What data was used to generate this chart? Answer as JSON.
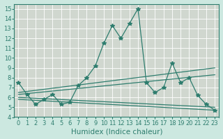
{
  "background_color": "#cce8e0",
  "grid_color": "#add8cc",
  "line_color": "#2e7d6e",
  "xlabel": "Humidex (Indice chaleur)",
  "xlim": [
    -0.5,
    23.5
  ],
  "ylim": [
    4,
    15.5
  ],
  "yticks": [
    4,
    5,
    6,
    7,
    8,
    9,
    10,
    11,
    12,
    13,
    14,
    15
  ],
  "xticks": [
    0,
    1,
    2,
    3,
    4,
    5,
    6,
    7,
    8,
    9,
    10,
    11,
    12,
    13,
    14,
    15,
    16,
    17,
    18,
    19,
    20,
    21,
    22,
    23
  ],
  "main_line": {
    "x": [
      0,
      1,
      2,
      3,
      4,
      5,
      6,
      7,
      8,
      9,
      10,
      11,
      12,
      13,
      14,
      15,
      16,
      17,
      18,
      19,
      20,
      21,
      22,
      23
    ],
    "y": [
      7.5,
      6.3,
      5.3,
      5.8,
      6.3,
      5.3,
      5.5,
      7.2,
      8.0,
      9.2,
      11.5,
      13.3,
      12.0,
      13.5,
      15.0,
      7.5,
      6.5,
      7.0,
      9.5,
      7.5,
      8.0,
      6.2,
      5.3,
      4.7
    ]
  },
  "trend_lines": [
    {
      "x": [
        0,
        23
      ],
      "y": [
        6.5,
        9.0
      ]
    },
    {
      "x": [
        0,
        23
      ],
      "y": [
        6.3,
        8.3
      ]
    },
    {
      "x": [
        0,
        23
      ],
      "y": [
        5.8,
        4.7
      ]
    },
    {
      "x": [
        0,
        23
      ],
      "y": [
        6.0,
        5.0
      ]
    }
  ],
  "marker": "*",
  "markersize": 4,
  "linewidth": 0.9,
  "tick_fontsize": 6,
  "label_fontsize": 7.5
}
